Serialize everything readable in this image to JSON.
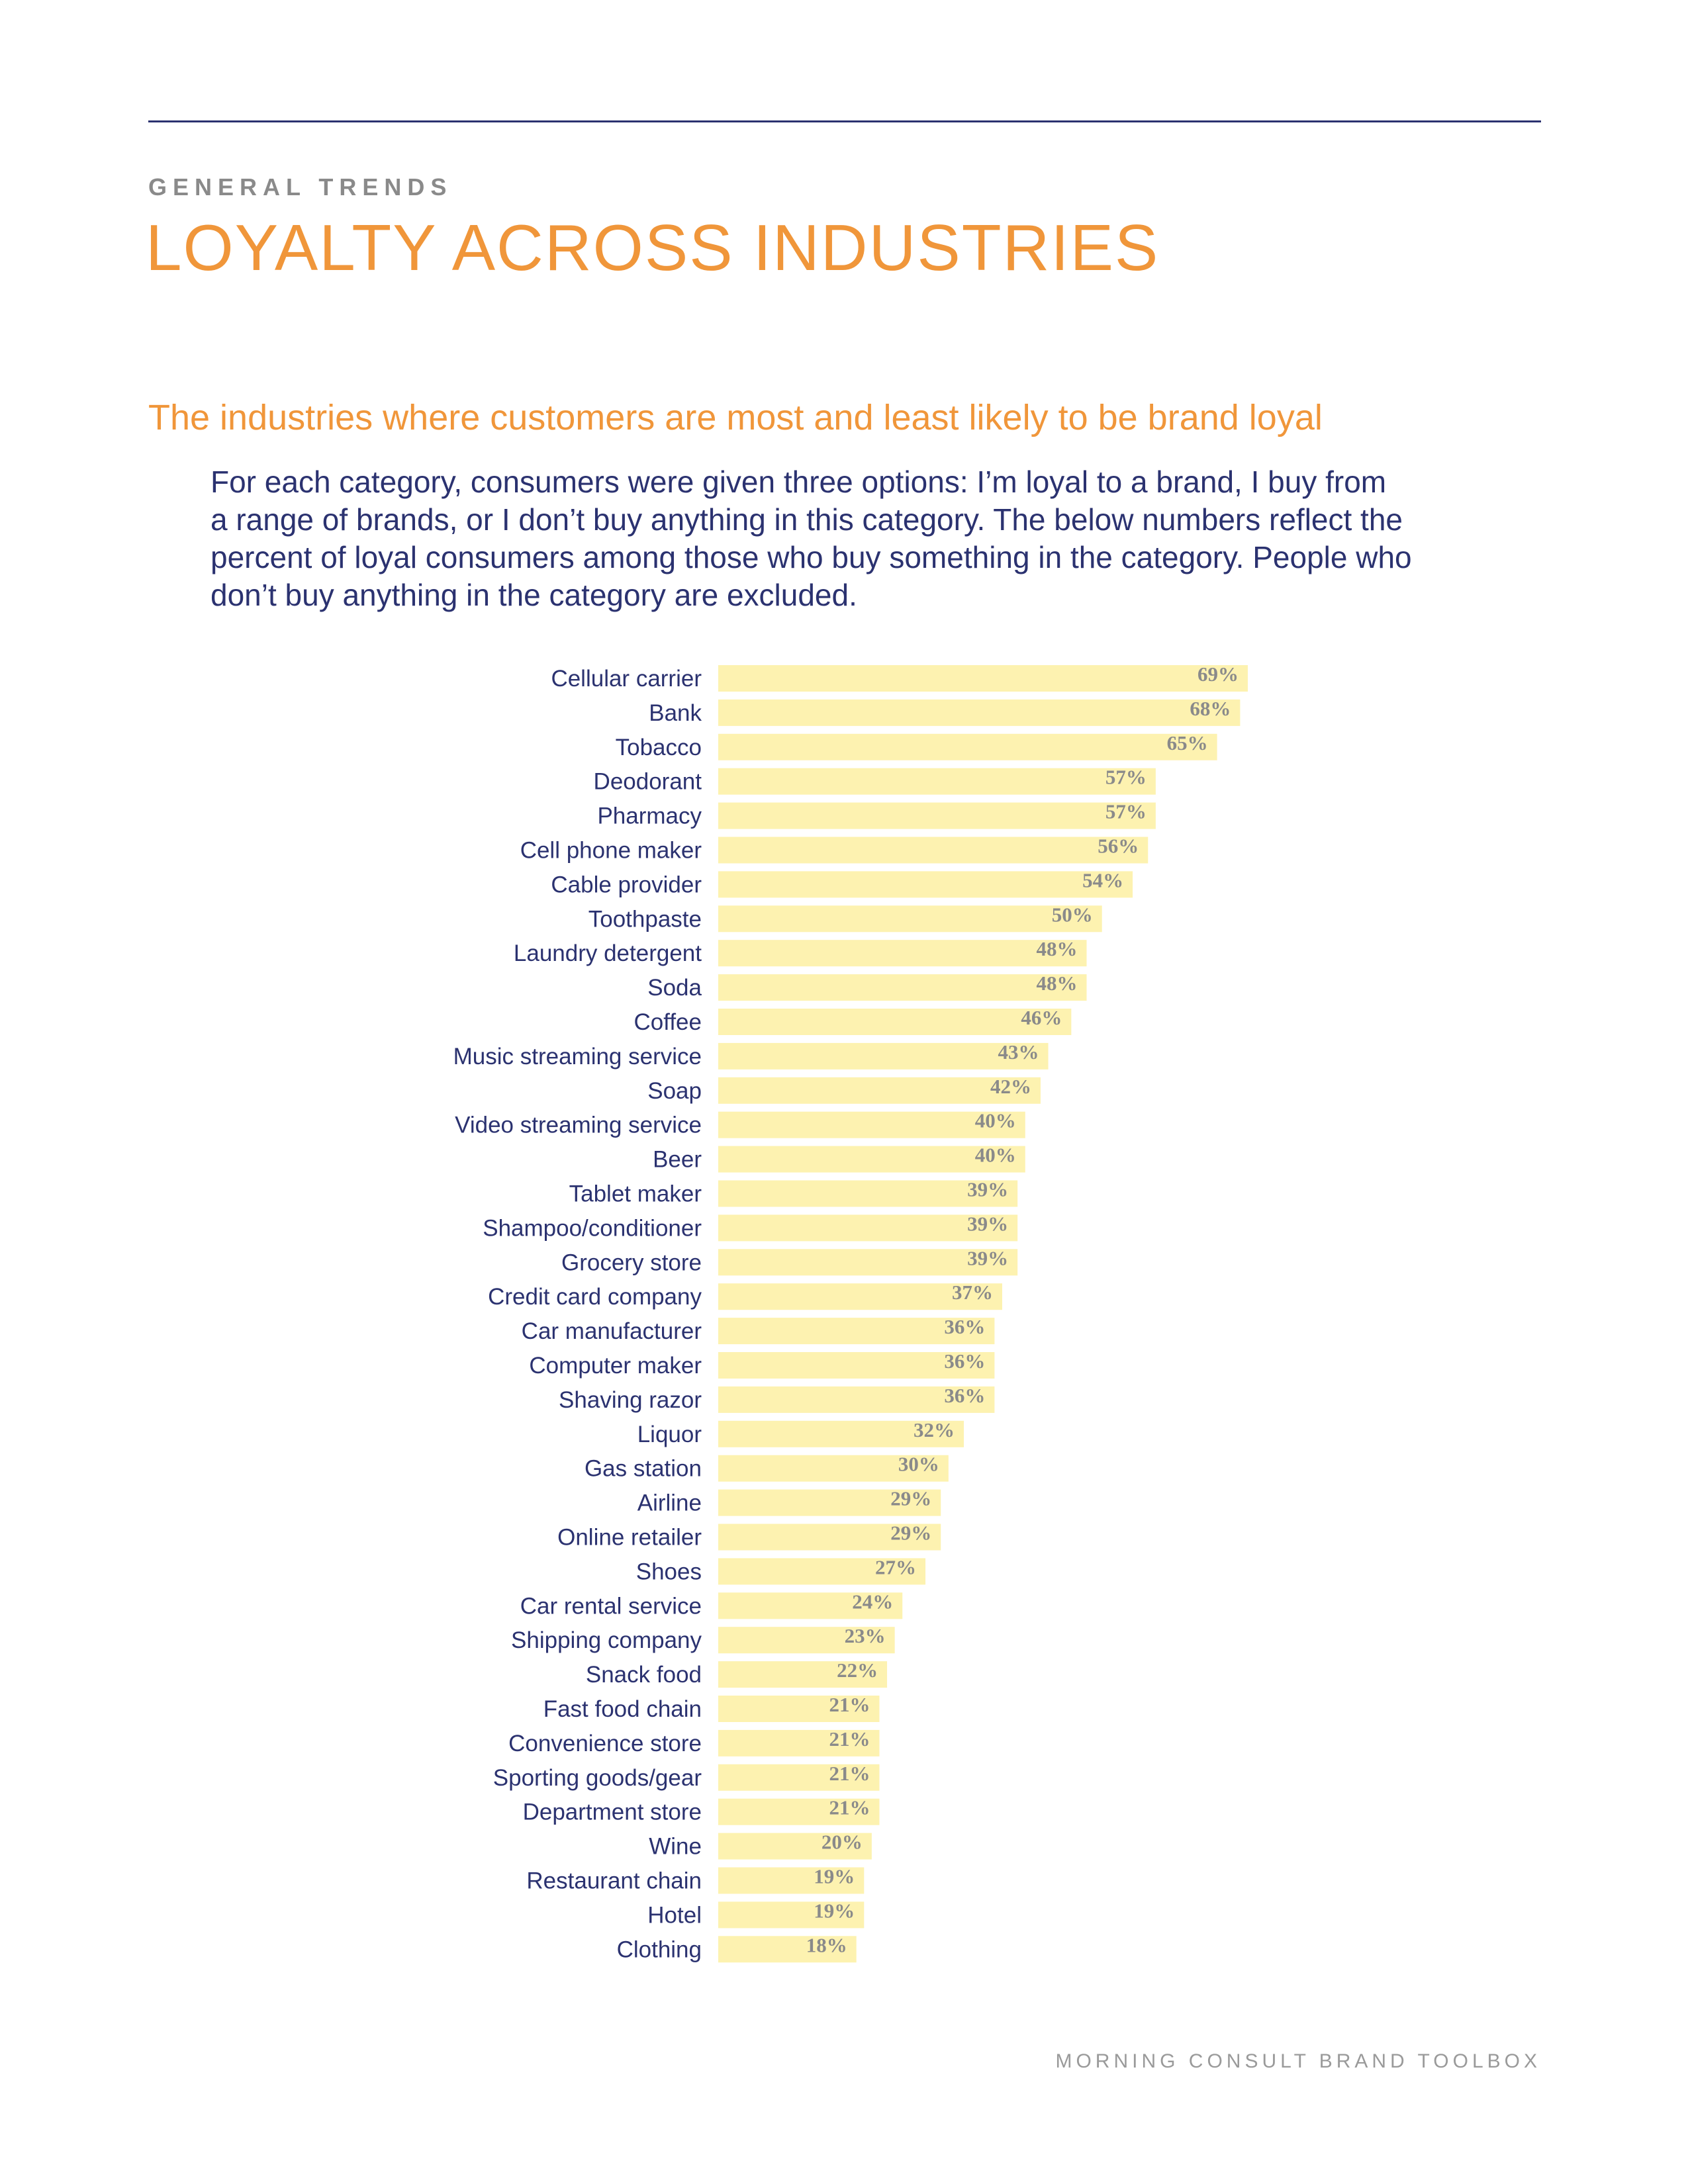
{
  "header": {
    "eyebrow": "GENERAL TRENDS",
    "title": "LOYALTY ACROSS INDUSTRIES"
  },
  "section": {
    "subtitle": "The industries where customers are most and least likely to be brand loyal",
    "intro_lines": [
      "For each category, consumers were given three options: I’m loyal to a brand, I buy from",
      "a range of brands, or I don’t buy anything in this category. The below numbers reflect the",
      "percent of loyal consumers among those who buy something in the category. People who",
      "don’t buy anything in the category are excluded."
    ]
  },
  "footer": {
    "text": "MORNING CONSULT BRAND TOOLBOX"
  },
  "colors": {
    "bar": "#fdf2b0",
    "accent": "#f0963a",
    "navy": "#2b3270"
  },
  "chart_data": {
    "type": "bar",
    "orientation": "horizontal",
    "title": "",
    "xlabel": "",
    "ylabel": "",
    "value_suffix": "%",
    "xlim": [
      0,
      69
    ],
    "grid": false,
    "categories": [
      "Cellular carrier",
      "Bank",
      "Tobacco",
      "Deodorant",
      "Pharmacy",
      "Cell phone maker",
      "Cable provider",
      "Toothpaste",
      "Laundry detergent",
      "Soda",
      "Coffee",
      "Music streaming service",
      "Soap",
      "Video streaming service",
      "Beer",
      "Tablet maker",
      "Shampoo/conditioner",
      "Grocery store",
      "Credit card company",
      "Car manufacturer",
      "Computer maker",
      "Shaving razor",
      "Liquor",
      "Gas station",
      "Airline",
      "Online retailer",
      "Shoes",
      "Car rental service",
      "Shipping company",
      "Snack food",
      "Fast food chain",
      "Convenience store",
      "Sporting goods/gear",
      "Department store",
      "Wine",
      "Restaurant chain",
      "Hotel",
      "Clothing"
    ],
    "values": [
      69,
      68,
      65,
      57,
      57,
      56,
      54,
      50,
      48,
      48,
      46,
      43,
      42,
      40,
      40,
      39,
      39,
      39,
      37,
      36,
      36,
      36,
      32,
      30,
      29,
      29,
      27,
      24,
      23,
      22,
      21,
      21,
      21,
      21,
      20,
      19,
      19,
      18
    ]
  }
}
